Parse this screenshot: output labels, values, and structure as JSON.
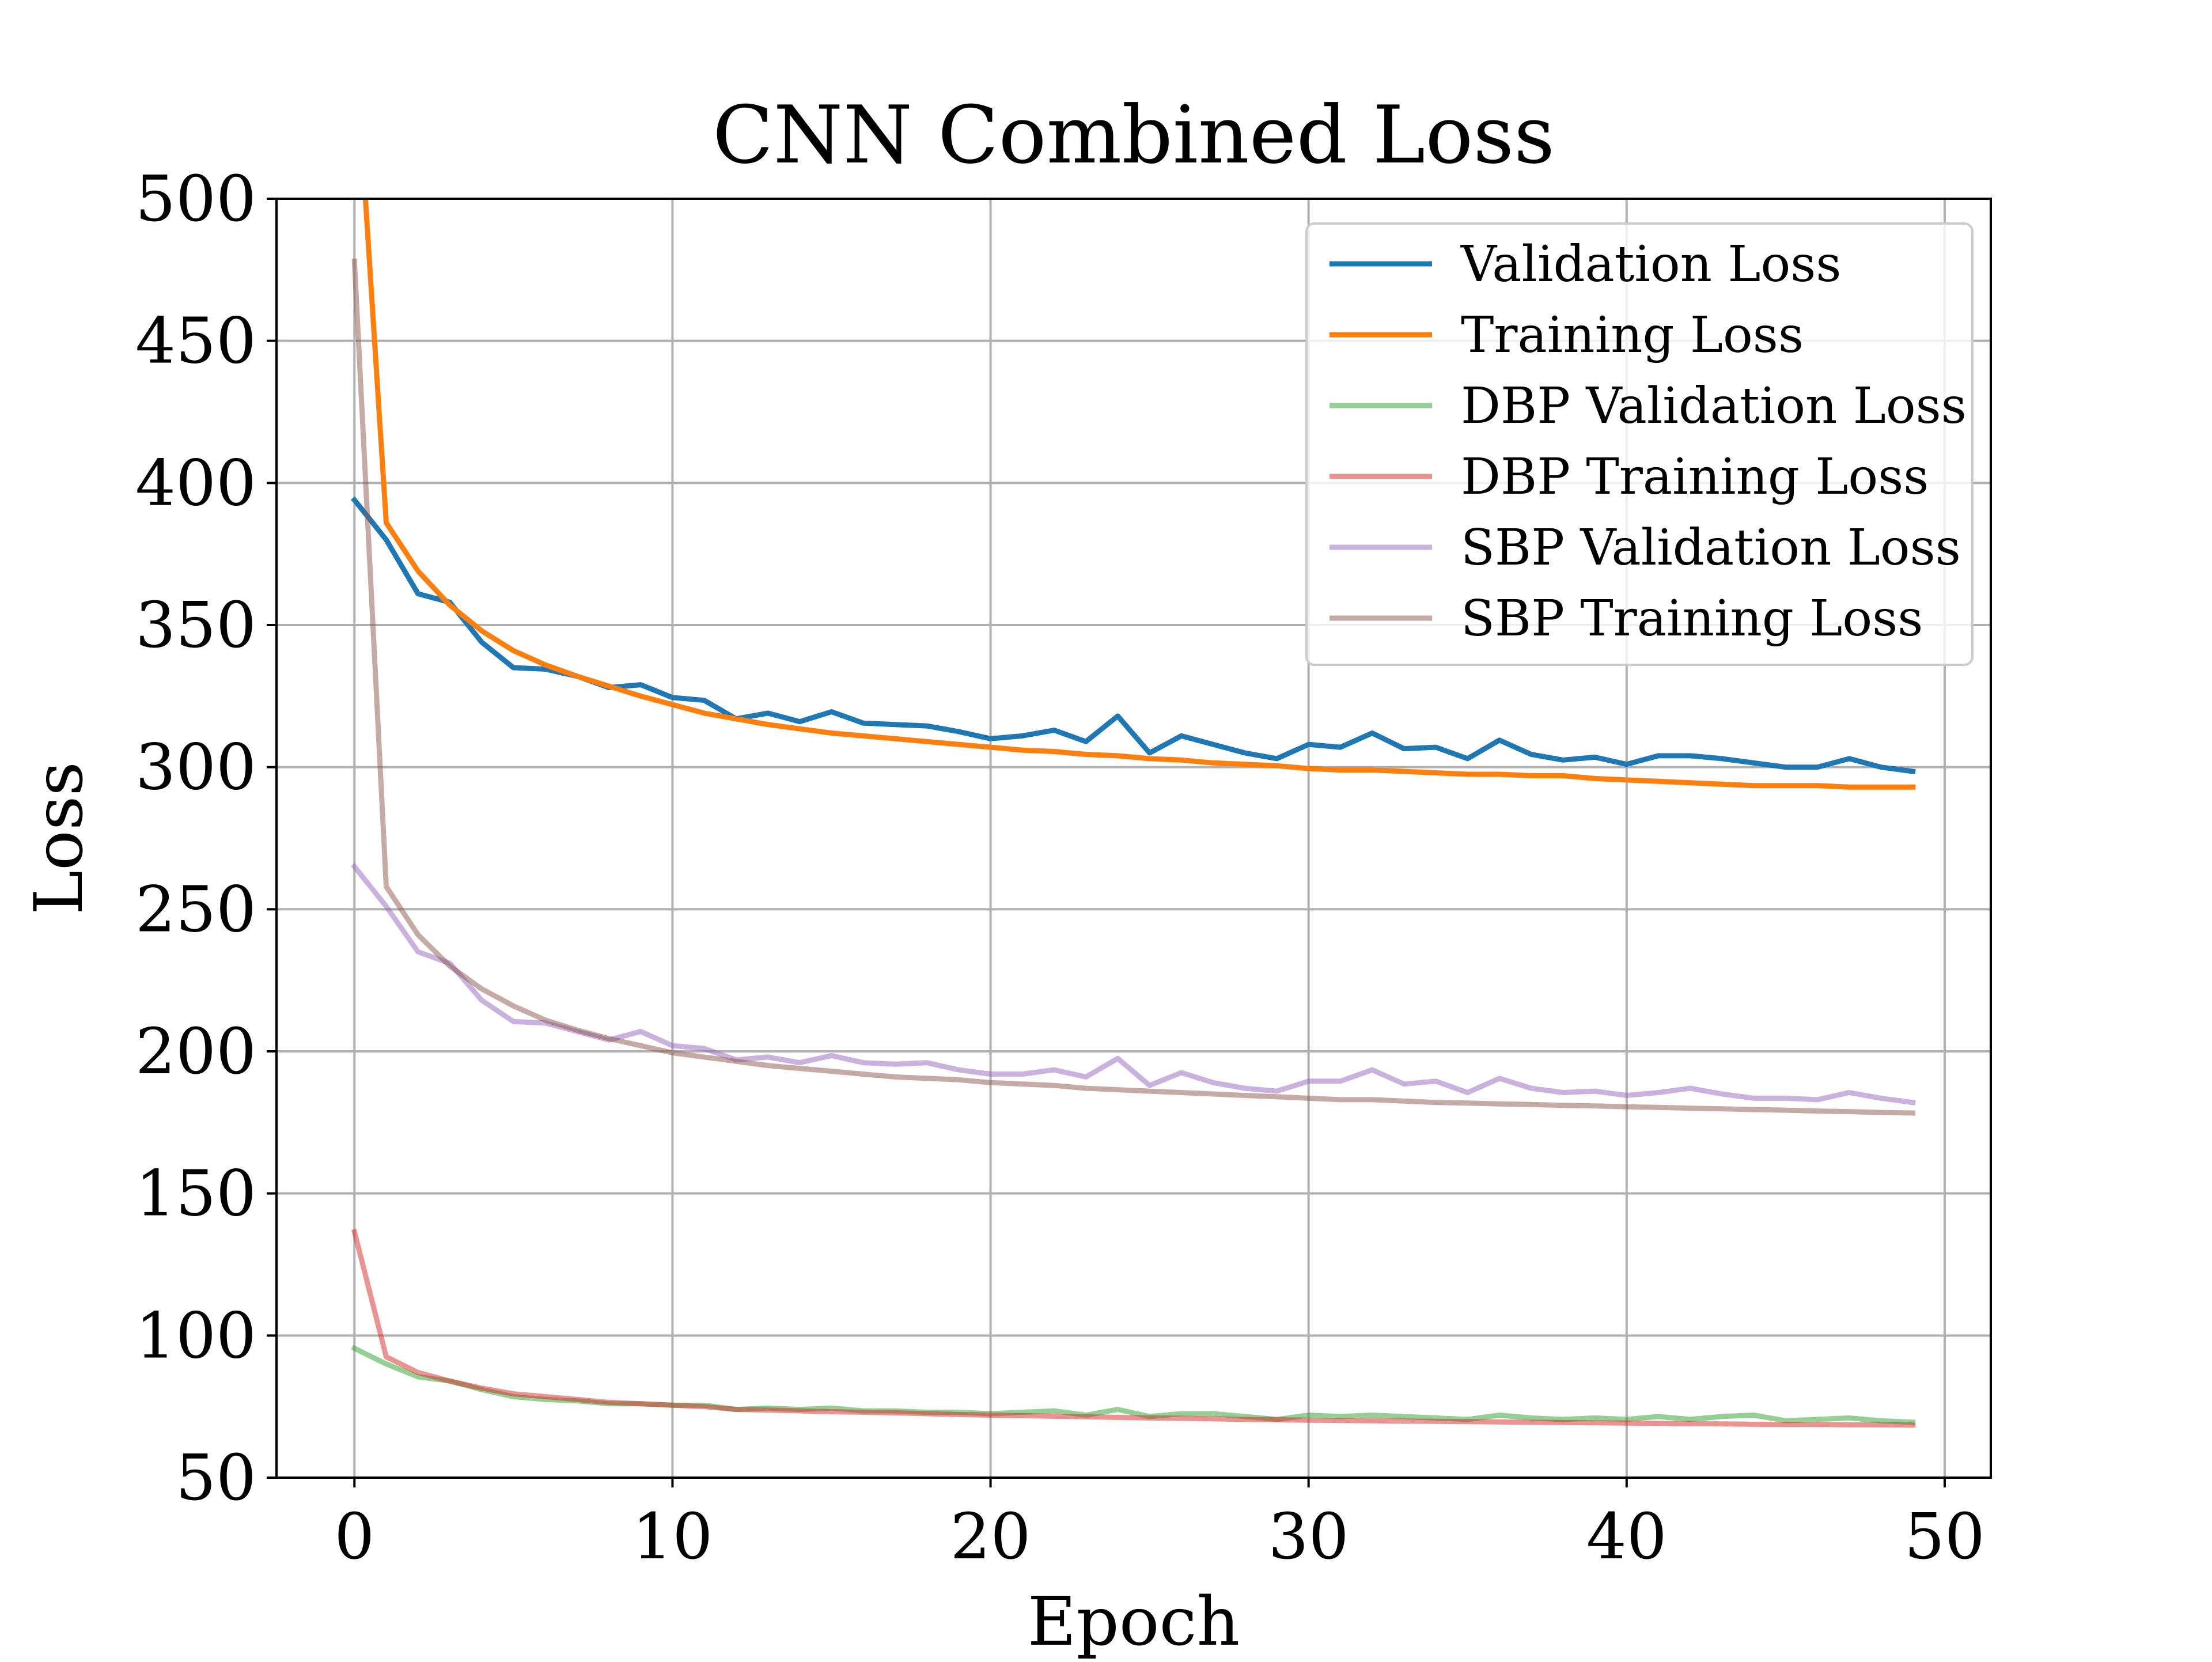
{
  "chart_data": {
    "type": "line",
    "title": "CNN Combined Loss",
    "xlabel": "Epoch",
    "ylabel": "Loss",
    "xlim": [
      -2.45,
      51.45
    ],
    "ylim": [
      50,
      500
    ],
    "xticks": [
      0,
      10,
      20,
      30,
      40,
      50
    ],
    "yticks": [
      50,
      100,
      150,
      200,
      250,
      300,
      350,
      400,
      450,
      500
    ],
    "grid": true,
    "legend_position": "upper-right",
    "series": [
      {
        "name": "Validation Loss",
        "color": "#1f77b4",
        "opacity": 1,
        "x": [
          0,
          1,
          2,
          3,
          4,
          5,
          6,
          7,
          8,
          9,
          10,
          11,
          12,
          13,
          14,
          15,
          16,
          17,
          18,
          19,
          20,
          21,
          22,
          23,
          24,
          25,
          26,
          27,
          28,
          29,
          30,
          31,
          32,
          33,
          34,
          35,
          36,
          37,
          38,
          39,
          40,
          41,
          42,
          43,
          44,
          45,
          46,
          47,
          48,
          49
        ],
        "values": [
          394,
          380,
          361,
          358,
          344,
          335,
          334.5,
          332,
          328,
          329,
          324.5,
          323.5,
          317,
          319,
          316,
          319.5,
          315.5,
          315,
          314.5,
          312.5,
          310,
          311,
          313,
          309,
          318,
          305,
          311,
          308,
          305,
          303,
          308,
          307,
          312,
          306.5,
          307,
          303,
          309.5,
          304.5,
          302.5,
          303.5,
          301,
          304,
          304,
          303,
          301.5,
          300,
          300,
          303,
          300,
          298.5
        ]
      },
      {
        "name": "Training Loss",
        "color": "#ff7f0e",
        "opacity": 1,
        "x": [
          0,
          1,
          2,
          3,
          4,
          5,
          6,
          7,
          8,
          9,
          10,
          11,
          12,
          13,
          14,
          15,
          16,
          17,
          18,
          19,
          20,
          21,
          22,
          23,
          24,
          25,
          26,
          27,
          28,
          29,
          30,
          31,
          32,
          33,
          34,
          35,
          36,
          37,
          38,
          39,
          40,
          41,
          42,
          43,
          44,
          45,
          46,
          47,
          48,
          49
        ],
        "values": [
          560,
          386,
          369,
          357,
          348,
          341,
          336,
          332,
          328.5,
          325,
          322,
          319,
          317,
          315,
          313.5,
          312,
          311,
          310,
          309,
          308,
          307,
          306,
          305.5,
          304.5,
          304,
          303,
          302.5,
          301.5,
          301,
          300.5,
          299.5,
          299,
          299,
          298.5,
          298,
          297.5,
          297.5,
          297,
          297,
          296,
          295.5,
          295,
          294.5,
          294,
          293.5,
          293.5,
          293.5,
          293,
          293,
          293
        ]
      },
      {
        "name": "DBP Validation Loss",
        "color": "#2ca02c",
        "opacity": 0.5,
        "x": [
          0,
          1,
          2,
          3,
          4,
          5,
          6,
          7,
          8,
          9,
          10,
          11,
          12,
          13,
          14,
          15,
          16,
          17,
          18,
          19,
          20,
          21,
          22,
          23,
          24,
          25,
          26,
          27,
          28,
          29,
          30,
          31,
          32,
          33,
          34,
          35,
          36,
          37,
          38,
          39,
          40,
          41,
          42,
          43,
          44,
          45,
          46,
          47,
          48,
          49
        ],
        "values": [
          95.5,
          90,
          85.5,
          84,
          81,
          78.5,
          77.5,
          77,
          76,
          76,
          75.5,
          75.5,
          74,
          74.5,
          74,
          74.5,
          73.5,
          73.5,
          73,
          73,
          72.5,
          73,
          73.5,
          72,
          74,
          71.5,
          72.5,
          72.5,
          71.5,
          70.5,
          72,
          71.5,
          72,
          71.5,
          71,
          70.5,
          72,
          71,
          70.5,
          71,
          70.5,
          71.5,
          70.5,
          71.5,
          72,
          70,
          70.5,
          71,
          70,
          69.5
        ]
      },
      {
        "name": "DBP Training Loss",
        "color": "#d62728",
        "opacity": 0.5,
        "x": [
          0,
          1,
          2,
          3,
          4,
          5,
          6,
          7,
          8,
          9,
          10,
          11,
          12,
          13,
          14,
          15,
          16,
          17,
          18,
          19,
          20,
          21,
          22,
          23,
          24,
          25,
          26,
          27,
          28,
          29,
          30,
          31,
          32,
          33,
          34,
          35,
          36,
          37,
          38,
          39,
          40,
          41,
          42,
          43,
          44,
          45,
          46,
          47,
          48,
          49
        ],
        "values": [
          136.5,
          92.5,
          87,
          84,
          81.5,
          79.5,
          78.5,
          77.5,
          76.5,
          76,
          75.5,
          75,
          74,
          73.8,
          73.5,
          73.2,
          73,
          72.8,
          72.5,
          72.2,
          72,
          71.8,
          71.6,
          71.4,
          71.2,
          71,
          70.9,
          70.7,
          70.5,
          70.4,
          70.2,
          70.1,
          70,
          69.9,
          69.8,
          69.7,
          69.6,
          69.5,
          69.4,
          69.3,
          69.2,
          69.1,
          69,
          68.9,
          68.8,
          68.7,
          68.7,
          68.6,
          68.6,
          68.5
        ]
      },
      {
        "name": "SBP Validation Loss",
        "color": "#9467bd",
        "opacity": 0.5,
        "x": [
          0,
          1,
          2,
          3,
          4,
          5,
          6,
          7,
          8,
          9,
          10,
          11,
          12,
          13,
          14,
          15,
          16,
          17,
          18,
          19,
          20,
          21,
          22,
          23,
          24,
          25,
          26,
          27,
          28,
          29,
          30,
          31,
          32,
          33,
          34,
          35,
          36,
          37,
          38,
          39,
          40,
          41,
          42,
          43,
          44,
          45,
          46,
          47,
          48,
          49
        ],
        "values": [
          265,
          251,
          235,
          231,
          218,
          210.5,
          210,
          207,
          204,
          207,
          202,
          201,
          197,
          198,
          196,
          198.5,
          196,
          195.5,
          196,
          193.5,
          192,
          192,
          193.5,
          191,
          197.5,
          188,
          192.5,
          189,
          187,
          186,
          189.5,
          189.5,
          193.5,
          188.5,
          189.5,
          185.5,
          190.5,
          187,
          185.5,
          186,
          184.5,
          185.5,
          187,
          185,
          183.5,
          183.5,
          183,
          185.5,
          183.5,
          182
        ]
      },
      {
        "name": "SBP Training Loss",
        "color": "#8c564b",
        "opacity": 0.5,
        "x": [
          0,
          1,
          2,
          3,
          4,
          5,
          6,
          7,
          8,
          9,
          10,
          11,
          12,
          13,
          14,
          15,
          16,
          17,
          18,
          19,
          20,
          21,
          22,
          23,
          24,
          25,
          26,
          27,
          28,
          29,
          30,
          31,
          32,
          33,
          34,
          35,
          36,
          37,
          38,
          39,
          40,
          41,
          42,
          43,
          44,
          45,
          46,
          47,
          48,
          49
        ],
        "values": [
          478,
          258,
          241,
          230,
          222,
          216,
          211,
          207.5,
          204.5,
          202,
          199.5,
          198,
          196.5,
          195,
          194,
          193,
          192,
          191,
          190.5,
          190,
          189,
          188.5,
          188,
          187,
          186.5,
          186,
          185.5,
          185,
          184.5,
          184,
          183.5,
          183,
          183,
          182.5,
          182,
          181.8,
          181.5,
          181.3,
          181,
          180.8,
          180.5,
          180.3,
          180,
          179.8,
          179.5,
          179.3,
          179,
          178.8,
          178.5,
          178.3
        ]
      }
    ]
  }
}
